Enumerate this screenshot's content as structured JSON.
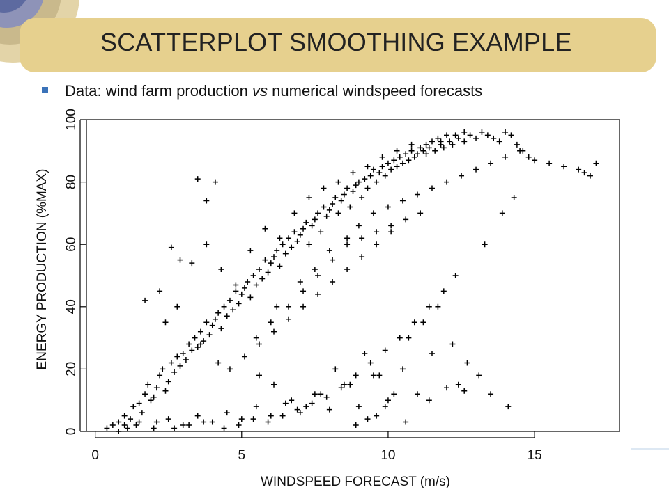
{
  "slide": {
    "title": "SCATTERPLOT SMOOTHING EXAMPLE",
    "bullet_prefix": "Data: wind farm production ",
    "bullet_vs": "vs",
    "bullet_suffix": " numerical windspeed forecasts",
    "banner_color": "#e6d08e",
    "bullet_color": "#3b73b9"
  },
  "chart_data": {
    "type": "scatter",
    "title": "",
    "xlabel": "WINDSPEED FORECAST (m/s)",
    "ylabel": "ENERGY PRODUCTION (%MAX)",
    "xlim": [
      -0.3,
      17.9
    ],
    "ylim": [
      0,
      100
    ],
    "xticks": [
      0,
      5,
      10,
      15
    ],
    "yticks": [
      0,
      20,
      40,
      60,
      80,
      100
    ],
    "marker": "+",
    "marker_color": "#000000",
    "grid": false,
    "legend": "none",
    "x": [
      0.4,
      0.6,
      0.8,
      1.0,
      1.2,
      1.3,
      1.5,
      1.6,
      1.7,
      1.8,
      1.9,
      2.0,
      2.1,
      2.2,
      2.3,
      2.4,
      2.5,
      2.6,
      2.7,
      2.8,
      2.9,
      3.0,
      3.1,
      3.2,
      3.3,
      3.4,
      3.5,
      3.6,
      3.7,
      3.8,
      3.9,
      4.0,
      4.1,
      4.2,
      4.3,
      4.4,
      4.5,
      4.6,
      4.7,
      4.8,
      4.9,
      5.0,
      5.1,
      5.2,
      5.3,
      5.4,
      5.5,
      5.6,
      5.7,
      5.8,
      5.9,
      6.0,
      6.1,
      6.2,
      6.3,
      6.4,
      6.5,
      6.6,
      6.7,
      6.8,
      6.9,
      7.0,
      7.1,
      7.2,
      7.3,
      7.4,
      7.5,
      7.6,
      7.7,
      7.8,
      7.9,
      8.0,
      8.1,
      8.2,
      8.3,
      8.4,
      8.5,
      8.6,
      8.7,
      8.8,
      8.9,
      9.0,
      9.1,
      9.2,
      9.3,
      9.4,
      9.5,
      9.6,
      9.7,
      9.8,
      9.9,
      10.0,
      10.1,
      10.2,
      10.3,
      10.4,
      10.5,
      10.6,
      10.7,
      10.8,
      10.9,
      11.0,
      11.1,
      11.2,
      11.3,
      11.4,
      11.5,
      11.6,
      11.7,
      11.8,
      11.9,
      12.0,
      12.1,
      12.2,
      12.4,
      12.6,
      12.8,
      13.0,
      13.2,
      13.4,
      13.6,
      13.8,
      14.0,
      14.2,
      14.4,
      14.6,
      14.8,
      15.0,
      15.5,
      16.0,
      16.5,
      16.7,
      16.9,
      17.1,
      1.0,
      1.5,
      2.0,
      2.5,
      3.0,
      3.5,
      4.0,
      4.5,
      5.0,
      5.5,
      6.0,
      6.5,
      7.0,
      7.5,
      8.0,
      8.5,
      9.0,
      9.5,
      10.0,
      10.5,
      11.0,
      11.5,
      12.0,
      2.2,
      2.8,
      3.3,
      3.8,
      4.3,
      4.8,
      5.3,
      5.8,
      6.3,
      6.8,
      7.3,
      7.8,
      8.3,
      8.8,
      9.3,
      9.8,
      10.3,
      10.8,
      11.3,
      11.8,
      12.3,
      12.6,
      1.7,
      2.4,
      3.6,
      4.2,
      5.6,
      6.1,
      6.7,
      7.2,
      7.7,
      8.2,
      8.7,
      9.2,
      9.7,
      10.2,
      10.7,
      11.2,
      11.7,
      12.2,
      12.7,
      13.1,
      13.5,
      14.1,
      3.8,
      4.1,
      3.5,
      2.9,
      2.6,
      9.6,
      9.9,
      10.6,
      11.4,
      12.4,
      12.6,
      8.9,
      9.3,
      0.8,
      1.1,
      1.4,
      2.1,
      2.7,
      3.2,
      3.7,
      4.4,
      4.9,
      5.4,
      5.9,
      6.4,
      6.9,
      7.4,
      7.9,
      8.4,
      8.9,
      9.4,
      9.9,
      10.4,
      10.9,
      11.4,
      11.9,
      12.3,
      13.3,
      13.9,
      14.3,
      6.2,
      7.0,
      7.5,
      8.0,
      8.6,
      9.0,
      9.5,
      10.0,
      10.5,
      11.0,
      11.5,
      12.0,
      12.5,
      13.0,
      13.5,
      14.0,
      14.5,
      5.5,
      6.0,
      6.6,
      7.1,
      7.6,
      8.1,
      8.6,
      9.1,
      9.6,
      10.1,
      10.6,
      11.1,
      4.6,
      5.1,
      5.6,
      6.1,
      6.6,
      7.1,
      7.6,
      8.1,
      8.6,
      9.1,
      9.6,
      10.1
    ],
    "y": [
      1,
      2,
      3,
      5,
      4,
      8,
      9,
      6,
      12,
      15,
      10,
      11,
      14,
      18,
      20,
      13,
      16,
      22,
      19,
      24,
      21,
      25,
      23,
      28,
      26,
      30,
      27,
      32,
      29,
      35,
      31,
      34,
      36,
      38,
      33,
      40,
      37,
      42,
      39,
      45,
      41,
      44,
      46,
      48,
      43,
      50,
      47,
      52,
      49,
      55,
      51,
      54,
      56,
      58,
      53,
      60,
      57,
      62,
      59,
      64,
      61,
      63,
      65,
      67,
      60,
      66,
      68,
      70,
      64,
      72,
      69,
      71,
      73,
      75,
      70,
      74,
      76,
      78,
      72,
      77,
      79,
      80,
      75,
      81,
      78,
      82,
      84,
      80,
      83,
      85,
      82,
      86,
      84,
      87,
      85,
      88,
      86,
      89,
      87,
      90,
      88,
      89,
      91,
      90,
      92,
      91,
      93,
      90,
      94,
      92,
      91,
      95,
      93,
      92,
      94,
      93,
      95,
      94,
      96,
      95,
      94,
      93,
      96,
      95,
      92,
      90,
      88,
      87,
      86,
      85,
      84,
      83,
      82,
      86,
      2,
      3,
      1,
      4,
      2,
      5,
      3,
      6,
      4,
      8,
      5,
      9,
      6,
      12,
      7,
      15,
      8,
      18,
      10,
      20,
      12,
      25,
      14,
      45,
      40,
      54,
      60,
      52,
      47,
      58,
      65,
      62,
      70,
      75,
      78,
      80,
      83,
      85,
      88,
      90,
      92,
      89,
      93,
      95,
      96,
      42,
      35,
      28,
      22,
      18,
      15,
      10,
      8,
      12,
      20,
      15,
      25,
      18,
      12,
      30,
      35,
      40,
      28,
      22,
      18,
      12,
      8,
      74,
      80,
      81,
      55,
      59,
      5,
      8,
      3,
      10,
      15,
      13,
      2,
      4,
      0,
      1,
      2,
      3,
      1,
      2,
      3,
      1,
      2,
      4,
      3,
      5,
      7,
      9,
      11,
      14,
      18,
      22,
      26,
      30,
      35,
      40,
      45,
      50,
      60,
      70,
      75,
      40,
      48,
      52,
      58,
      62,
      66,
      70,
      72,
      74,
      76,
      78,
      80,
      82,
      84,
      86,
      88,
      90,
      30,
      35,
      40,
      45,
      50,
      55,
      60,
      62,
      64,
      66,
      68,
      70,
      20,
      24,
      28,
      32,
      36,
      40,
      44,
      48,
      52,
      56,
      60,
      64
    ]
  }
}
